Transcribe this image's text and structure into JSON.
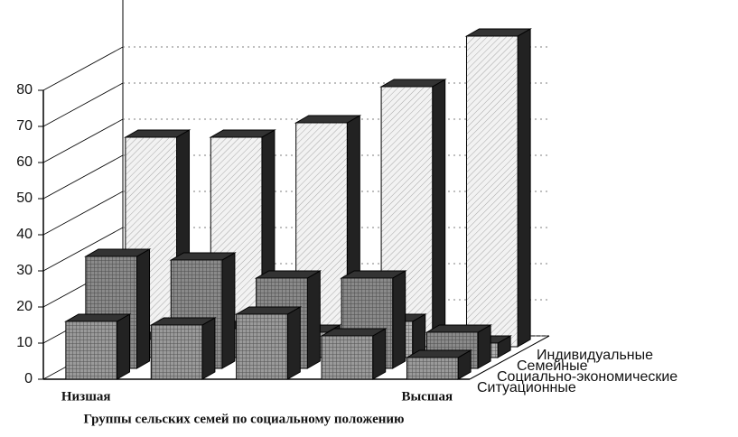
{
  "chart_data": {
    "type": "bar3d",
    "xlabel": "Группы сельских семей по социальному положению",
    "categories": [
      "Низшая",
      null,
      null,
      null,
      "Высшая"
    ],
    "series": [
      {
        "name": "Ситуационные",
        "color": "#9a9a9a",
        "values": [
          16,
          15,
          18,
          12,
          6
        ]
      },
      {
        "name": "Социально-экономические",
        "color": "#8a8a8a",
        "values": [
          31,
          30,
          25,
          25,
          10
        ]
      },
      {
        "name": "Семейные",
        "color": "#b0b0b0",
        "values": [
          5,
          8,
          7,
          10,
          4
        ]
      },
      {
        "name": "Индивидуальные",
        "color": "#f2f2f2",
        "values": [
          58,
          58,
          62,
          72,
          86
        ]
      }
    ],
    "ylim": [
      0,
      80
    ],
    "yticks": [
      0,
      10,
      20,
      30,
      40,
      50,
      60,
      70,
      80
    ],
    "grid": true
  }
}
